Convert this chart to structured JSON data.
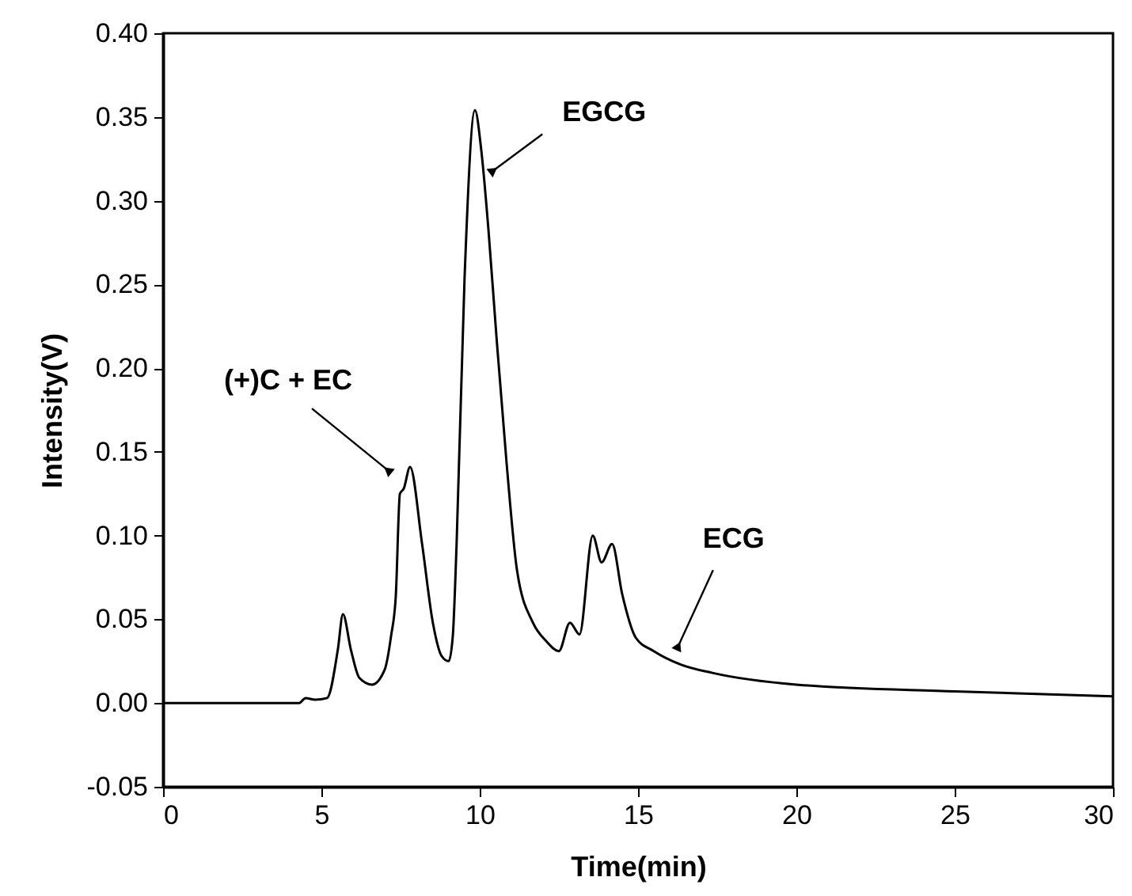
{
  "chart_data": {
    "type": "line",
    "xlabel": "Time(min)",
    "ylabel": "Intensity(V)",
    "color": "#000000",
    "marker": "none",
    "line_style": "solid",
    "x": [
      0,
      4.3,
      4.5,
      4.8,
      5.18,
      5.52,
      5.68,
      5.93,
      6.2,
      6.6,
      7.0,
      7.2,
      7.35,
      7.48,
      7.6,
      7.8,
      8.18,
      8.52,
      8.8,
      9.02,
      9.15,
      9.27,
      9.52,
      9.85,
      10.05,
      10.27,
      10.52,
      10.85,
      11.18,
      11.68,
      12.1,
      12.5,
      12.85,
      13.15,
      13.57,
      13.85,
      14.18,
      14.5,
      14.93,
      15.5,
      16.35,
      17.35,
      20,
      25,
      30
    ],
    "values": [
      0,
      0,
      0.003,
      0.002,
      0.003,
      0.032,
      0.053,
      0.032,
      0.015,
      0.011,
      0.02,
      0.04,
      0.064,
      0.125,
      0.128,
      0.141,
      0.095,
      0.048,
      0.028,
      0.025,
      0.04,
      0.095,
      0.253,
      0.354,
      0.33,
      0.284,
      0.221,
      0.143,
      0.079,
      0.048,
      0.037,
      0.031,
      0.048,
      0.041,
      0.1,
      0.084,
      0.095,
      0.065,
      0.039,
      0.031,
      0.023,
      0.018,
      0.011,
      0.007,
      0.004
    ],
    "xlim": [
      0,
      30
    ],
    "ylim": [
      -0.05,
      0.4
    ],
    "xticks": [
      0,
      5,
      10,
      15,
      20,
      25,
      30
    ],
    "yticks": [
      {
        "value": -0.05,
        "label": "-0.05"
      },
      {
        "value": 0,
        "label": "0.00"
      },
      {
        "value": 0.05,
        "label": "0.05"
      },
      {
        "value": 0.1,
        "label": "0.10"
      },
      {
        "value": 0.15,
        "label": "0.15"
      },
      {
        "value": 0.2,
        "label": "0.20"
      },
      {
        "value": 0.25,
        "label": "0.25"
      },
      {
        "value": 0.3,
        "label": "0.30"
      },
      {
        "value": 0.35,
        "label": "0.35"
      },
      {
        "value": 0.4,
        "label": "0.40"
      }
    ],
    "annotations": [
      {
        "text": "(+)C + EC",
        "x": 7.1,
        "y": 0.139
      },
      {
        "text": "EGCG",
        "x": 10.43,
        "y": 0.318
      },
      {
        "text": "ECG",
        "x": 16.27,
        "y": 0.034
      }
    ]
  }
}
